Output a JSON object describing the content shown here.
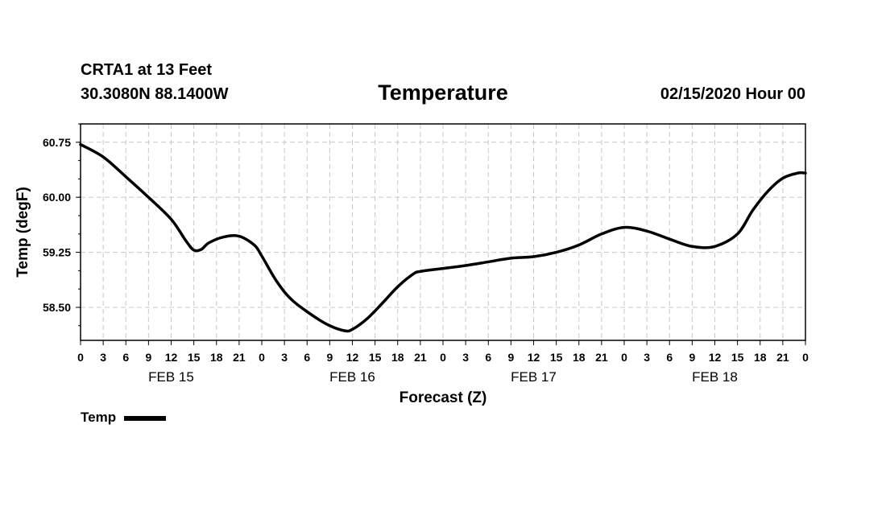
{
  "header": {
    "station": "CRTA1 at 13 Feet",
    "coords": "30.3080N 88.1400W",
    "title": "Temperature",
    "timestamp": "02/15/2020 Hour 00"
  },
  "chart_data": {
    "type": "line",
    "title": "Temperature",
    "xlabel": "Forecast (Z)",
    "ylabel": "Temp (degF)",
    "x_unit": "forecast hour",
    "xlim": [
      0,
      96
    ],
    "ylim": [
      58.05,
      61.0
    ],
    "y_ticks": [
      "60.75",
      "60.00",
      "59.25",
      "58.50"
    ],
    "y_tick_values": [
      60.75,
      60.0,
      59.25,
      58.5
    ],
    "x_tick_labels": [
      "0",
      "3",
      "6",
      "9",
      "12",
      "15",
      "18",
      "21",
      "0",
      "3",
      "6",
      "9",
      "12",
      "15",
      "18",
      "21",
      "0",
      "3",
      "6",
      "9",
      "12",
      "15",
      "18",
      "21",
      "0",
      "3",
      "6",
      "9",
      "12",
      "15",
      "18",
      "21",
      "0"
    ],
    "day_labels": [
      {
        "label": "FEB 15",
        "hour": 12
      },
      {
        "label": "FEB 16",
        "hour": 36
      },
      {
        "label": "FEB 17",
        "hour": 60
      },
      {
        "label": "FEB 18",
        "hour": 84
      }
    ],
    "grid": true,
    "line_color": "#000000",
    "series": [
      {
        "name": "Temp",
        "x": [
          0,
          3,
          6,
          9,
          12,
          14,
          15,
          16,
          17,
          19,
          21,
          23,
          24,
          26,
          28,
          31,
          33,
          35,
          36,
          38,
          40,
          42,
          44,
          45,
          48,
          51,
          54,
          57,
          60,
          63,
          66,
          69,
          72,
          75,
          78,
          81,
          84,
          87,
          89,
          91,
          93,
          95,
          96
        ],
        "y": [
          60.72,
          60.55,
          60.28,
          60.0,
          59.7,
          59.4,
          59.28,
          59.29,
          59.38,
          59.46,
          59.47,
          59.35,
          59.2,
          58.85,
          58.6,
          58.37,
          58.25,
          58.18,
          58.2,
          58.35,
          58.56,
          58.78,
          58.95,
          58.99,
          59.03,
          59.07,
          59.12,
          59.17,
          59.19,
          59.25,
          59.35,
          59.5,
          59.59,
          59.54,
          59.43,
          59.33,
          59.33,
          59.5,
          59.82,
          60.08,
          60.26,
          60.33,
          60.33
        ]
      }
    ]
  },
  "legend": {
    "label": "Temp"
  }
}
